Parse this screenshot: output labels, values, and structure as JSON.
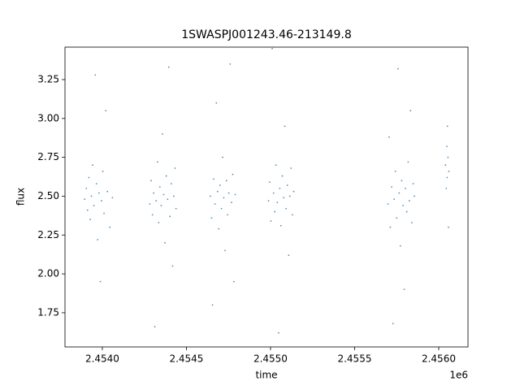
{
  "chart_data": {
    "type": "scatter",
    "title": "1SWASPJ001243.46-213149.8",
    "x_label": "time",
    "y_label": "flux",
    "x_offset_label": "1e6",
    "color": "#1f77b4",
    "x": [
      2453895,
      2453905,
      2453912,
      2453920,
      2453928,
      2453935,
      2453942,
      2453950,
      2453958,
      2453965,
      2453972,
      2453980,
      2453988,
      2453995,
      2454003,
      2454010,
      2454020,
      2454030,
      2454045,
      2454060,
      2454282,
      2454290,
      2454298,
      2454305,
      2454312,
      2454320,
      2454328,
      2454335,
      2454342,
      2454350,
      2454358,
      2454365,
      2454372,
      2454380,
      2454388,
      2454395,
      2454402,
      2454410,
      2454418,
      2454425,
      2454432,
      2454438,
      2454642,
      2454650,
      2454655,
      2454662,
      2454670,
      2454678,
      2454685,
      2454692,
      2454700,
      2454708,
      2454715,
      2454722,
      2454730,
      2454738,
      2454745,
      2454752,
      2454760,
      2454768,
      2454775,
      2454782,
      2454790,
      2454988,
      2454995,
      2455002,
      2455010,
      2455018,
      2455025,
      2455032,
      2455040,
      2455048,
      2455055,
      2455062,
      2455070,
      2455078,
      2455085,
      2455092,
      2455100,
      2455108,
      2455115,
      2455122,
      2455130,
      2455138,
      2455698,
      2455705,
      2455712,
      2455720,
      2455728,
      2455735,
      2455742,
      2455750,
      2455758,
      2455765,
      2455772,
      2455780,
      2455788,
      2455795,
      2455802,
      2455810,
      2455818,
      2455825,
      2455832,
      2455840,
      2455848,
      2455855,
      2456040,
      2456045,
      2456048,
      2456050,
      2456052,
      2456055,
      2456058,
      2456060
    ],
    "values": [
      2.48,
      2.55,
      2.41,
      2.62,
      2.35,
      2.5,
      2.7,
      2.44,
      3.28,
      2.58,
      2.22,
      2.52,
      1.95,
      2.47,
      2.66,
      2.39,
      3.05,
      2.53,
      2.3,
      2.49,
      2.45,
      2.6,
      2.38,
      2.52,
      1.66,
      2.47,
      2.72,
      2.33,
      2.56,
      2.44,
      2.9,
      2.51,
      2.2,
      2.63,
      2.48,
      3.33,
      2.37,
      2.58,
      2.05,
      2.5,
      2.68,
      2.42,
      2.5,
      2.36,
      1.8,
      2.61,
      2.45,
      3.1,
      2.53,
      2.29,
      2.57,
      2.42,
      2.75,
      2.49,
      2.15,
      2.6,
      2.38,
      2.52,
      3.35,
      2.46,
      2.64,
      1.95,
      2.51,
      2.47,
      2.59,
      2.34,
      3.45,
      2.52,
      2.4,
      2.7,
      2.46,
      1.62,
      2.55,
      2.31,
      2.63,
      2.49,
      2.95,
      2.42,
      2.57,
      2.12,
      2.5,
      2.68,
      2.38,
      2.53,
      2.45,
      2.88,
      2.3,
      2.56,
      1.68,
      2.48,
      2.66,
      2.36,
      3.32,
      2.52,
      2.18,
      2.6,
      2.44,
      1.9,
      2.55,
      2.4,
      2.72,
      2.47,
      3.05,
      2.33,
      2.58,
      2.5,
      2.7,
      2.55,
      2.82,
      2.62,
      2.95,
      2.75,
      2.3,
      2.66
    ],
    "xlim": [
      2453778,
      2456174
    ],
    "ylim": [
      1.53,
      3.459
    ],
    "xticks": [
      {
        "value": 2454000,
        "label": "2.4540"
      },
      {
        "value": 2454500,
        "label": "2.4545"
      },
      {
        "value": 2455000,
        "label": "2.4550"
      },
      {
        "value": 2455500,
        "label": "2.4555"
      },
      {
        "value": 2456000,
        "label": "2.4560"
      }
    ],
    "yticks": [
      1.75,
      {
        "value": 2,
        "label": "2.00"
      },
      2.25,
      {
        "value": 2.5,
        "label": "2.50"
      },
      2.75,
      {
        "value": 3,
        "label": "3.00"
      },
      3.25
    ]
  }
}
